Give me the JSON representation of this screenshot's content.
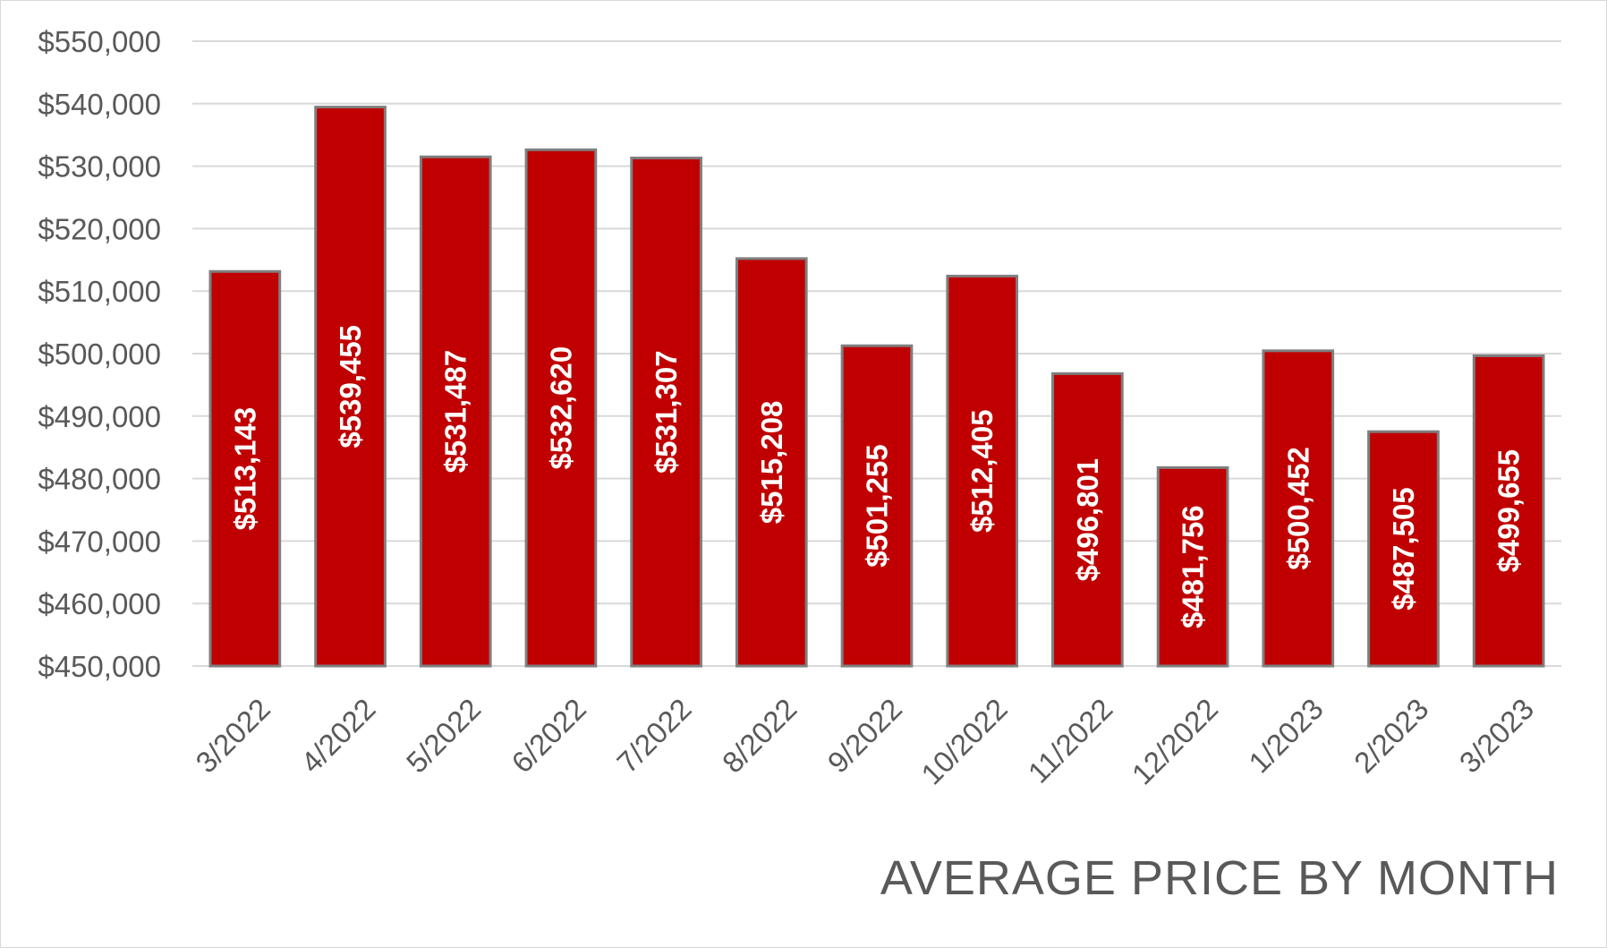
{
  "chart_data": {
    "type": "bar",
    "title": "AVERAGE PRICE BY MONTH",
    "categories": [
      "3/2022",
      "4/2022",
      "5/2022",
      "6/2022",
      "7/2022",
      "8/2022",
      "9/2022",
      "10/2022",
      "11/2022",
      "12/2022",
      "1/2023",
      "2/2023",
      "3/2023"
    ],
    "values": [
      513143,
      539455,
      531487,
      532620,
      531307,
      515208,
      501255,
      512405,
      496801,
      481756,
      500452,
      487505,
      499655
    ],
    "data_labels": [
      "$513,143",
      "$539,455",
      "$531,487",
      "$532,620",
      "$531,307",
      "$515,208",
      "$501,255",
      "$512,405",
      "$496,801",
      "$481,756",
      "$500,452",
      "$487,505",
      "$499,655"
    ],
    "y_ticks": [
      450000,
      460000,
      470000,
      480000,
      490000,
      500000,
      510000,
      520000,
      530000,
      540000,
      550000
    ],
    "y_tick_labels": [
      "$450,000",
      "$460,000",
      "$470,000",
      "$480,000",
      "$490,000",
      "$500,000",
      "$510,000",
      "$520,000",
      "$530,000",
      "$540,000",
      "$550,000"
    ],
    "ylim": [
      450000,
      550000
    ],
    "grid": true,
    "legend": "none",
    "colors": {
      "bar": "#c00000",
      "bar_border": "#7f7f7f",
      "grid": "#d9d9d9",
      "text": "#595959",
      "label": "#ffffff"
    }
  }
}
